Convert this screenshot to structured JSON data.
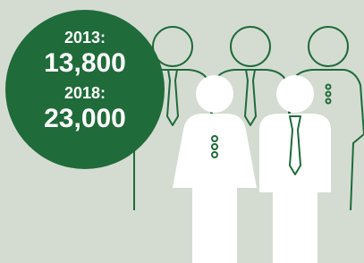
{
  "stats": [
    {
      "year": "2013:",
      "value": "13,800"
    },
    {
      "year": "2018:",
      "value": "23,000"
    }
  ]
}
